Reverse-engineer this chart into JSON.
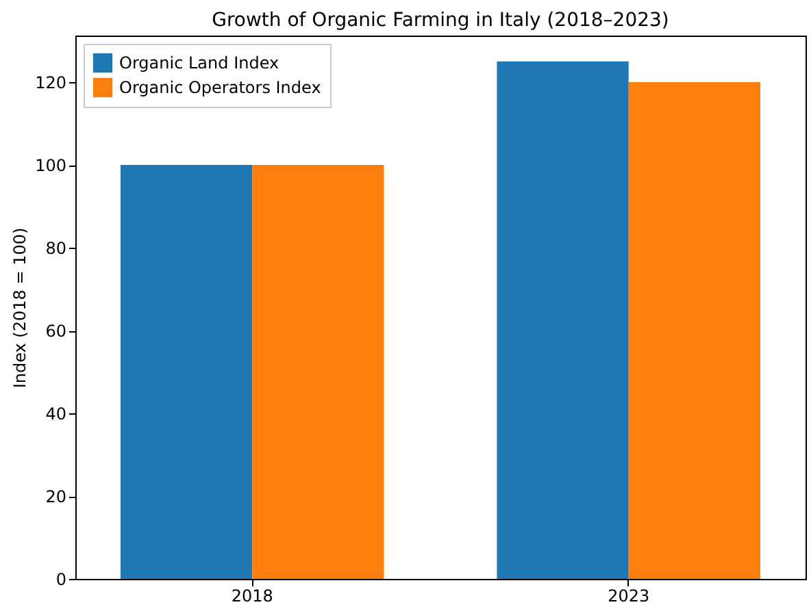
{
  "chart_data": {
    "type": "bar",
    "title": "Growth of Organic Farming in Italy (2018–2023)",
    "ylabel": "Index (2018 = 100)",
    "categories": [
      "2018",
      "2023"
    ],
    "series": [
      {
        "name": "Organic Land Index",
        "color": "#1f77b4",
        "values": [
          100,
          125
        ]
      },
      {
        "name": "Organic Operators Index",
        "color": "#ff7f0e",
        "values": [
          100,
          120
        ]
      }
    ],
    "ylim": [
      0,
      131.25
    ],
    "yticks": [
      0,
      20,
      40,
      60,
      80,
      100,
      120
    ],
    "grid": false,
    "legend": "top left"
  }
}
